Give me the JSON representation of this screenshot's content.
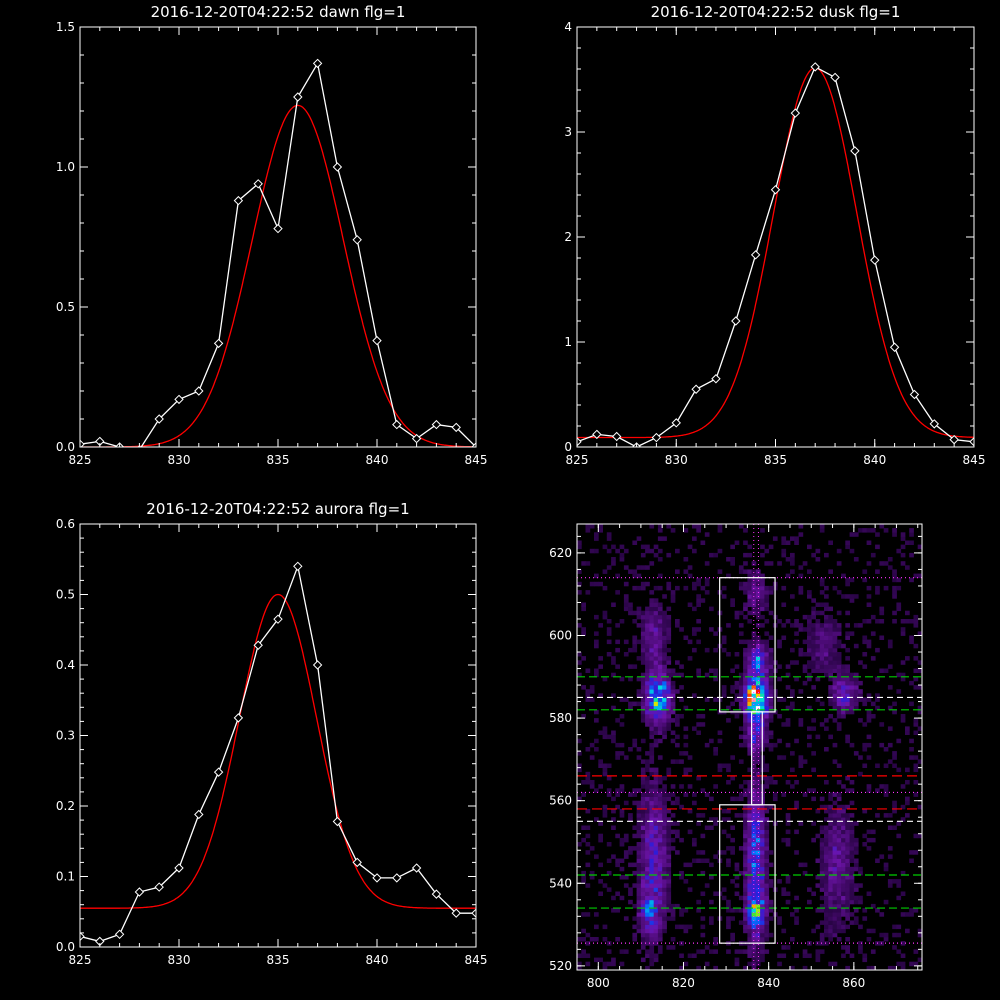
{
  "chart_data": [
    {
      "type": "line",
      "title": "2016-12-20T04:22:52 dawn flg=1",
      "xlim": [
        825,
        845
      ],
      "ylim": [
        0,
        1.5
      ],
      "xticks": [
        "825",
        "830",
        "835",
        "840",
        "845"
      ],
      "yticks": [
        "0.0",
        "0.5",
        "1.0",
        "1.5"
      ],
      "series": [
        {
          "style": "data",
          "color": "#ffffff",
          "x": [
            825,
            826,
            827,
            828,
            829,
            830,
            831,
            832,
            833,
            834,
            835,
            836,
            837,
            838,
            839,
            840,
            841,
            842,
            843,
            844,
            845
          ],
          "y": [
            0.01,
            0.02,
            0.0,
            -0.01,
            0.1,
            0.17,
            0.2,
            0.37,
            0.88,
            0.94,
            0.78,
            1.25,
            1.37,
            1.0,
            0.74,
            0.38,
            0.08,
            0.03,
            0.08,
            0.07,
            0.0
          ]
        },
        {
          "style": "fit",
          "color": "#ff0000",
          "amp": 1.22,
          "center": 836.0,
          "sigma": 2.3,
          "base": 0.0
        }
      ]
    },
    {
      "type": "line",
      "title": "2016-12-20T04:22:52 dusk flg=1",
      "xlim": [
        825,
        845
      ],
      "ylim": [
        0,
        4
      ],
      "xticks": [
        "825",
        "830",
        "835",
        "840",
        "845"
      ],
      "yticks": [
        "0",
        "1",
        "2",
        "3",
        "4"
      ],
      "series": [
        {
          "style": "data",
          "color": "#ffffff",
          "x": [
            825,
            826,
            827,
            828,
            829,
            830,
            831,
            832,
            833,
            834,
            835,
            836,
            837,
            838,
            839,
            840,
            841,
            842,
            843,
            844,
            845
          ],
          "y": [
            0.05,
            0.12,
            0.1,
            0.0,
            0.09,
            0.23,
            0.55,
            0.65,
            1.2,
            1.83,
            2.45,
            3.18,
            3.62,
            3.52,
            2.82,
            1.78,
            0.95,
            0.5,
            0.22,
            0.07,
            0.05
          ]
        },
        {
          "style": "fit",
          "color": "#ff0000",
          "amp": 3.52,
          "center": 837.0,
          "sigma": 2.1,
          "base": 0.09
        }
      ]
    },
    {
      "type": "line",
      "title": "2016-12-20T04:22:52 aurora flg=1",
      "xlim": [
        825,
        845
      ],
      "ylim": [
        0,
        0.6
      ],
      "xticks": [
        "825",
        "830",
        "835",
        "840",
        "845"
      ],
      "yticks": [
        "0.0",
        "0.1",
        "0.2",
        "0.3",
        "0.4",
        "0.5",
        "0.6"
      ],
      "series": [
        {
          "style": "data",
          "color": "#ffffff",
          "x": [
            825,
            826,
            827,
            828,
            829,
            830,
            831,
            832,
            833,
            834,
            835,
            836,
            837,
            838,
            839,
            840,
            841,
            842,
            843,
            844,
            845
          ],
          "y": [
            0.015,
            0.008,
            0.018,
            0.078,
            0.085,
            0.112,
            0.188,
            0.248,
            0.325,
            0.428,
            0.465,
            0.54,
            0.4,
            0.178,
            0.12,
            0.098,
            0.098,
            0.112,
            0.075,
            0.048,
            0.048
          ]
        },
        {
          "style": "fit",
          "color": "#ff0000",
          "amp": 0.445,
          "center": 835.0,
          "sigma": 1.95,
          "base": 0.055
        }
      ]
    },
    {
      "type": "heatmap",
      "title": "",
      "xlim": [
        795,
        876
      ],
      "ylim": [
        519,
        627
      ],
      "xticks": [
        "800",
        "820",
        "840",
        "860"
      ],
      "yticks": [
        "520",
        "540",
        "560",
        "580",
        "600",
        "620"
      ],
      "colors": {
        "box": "#ffffff",
        "dotted": "#ff33ff",
        "green_dash": "#00cc00",
        "red_dash": "#ff0000",
        "white_dash": "#ffffff"
      },
      "boxes": [
        {
          "x0": 828.5,
          "x1": 841.5,
          "y0": 525.5,
          "y1": 559
        },
        {
          "x0": 828.5,
          "x1": 841.5,
          "y0": 581.5,
          "y1": 614
        }
      ],
      "connector": {
        "x0": 836,
        "x1": 838.5,
        "y0": 559,
        "y1": 581.5
      },
      "dotted_h": [
        525.5,
        562,
        614
      ],
      "dotted_v": [
        836.5,
        837.6
      ],
      "green_dash": [
        534,
        542,
        582,
        590
      ],
      "red_dash": [
        558,
        566
      ],
      "white_dash": [
        555,
        585
      ],
      "blobs": [
        {
          "x": 837,
          "y": 585,
          "sx": 1.8,
          "sy": 3.0,
          "v": 1.0
        },
        {
          "x": 837.5,
          "y": 594,
          "sx": 1.6,
          "sy": 2.5,
          "v": 0.45
        },
        {
          "x": 837,
          "y": 576,
          "sx": 1.5,
          "sy": 3.0,
          "v": 0.3
        },
        {
          "x": 814,
          "y": 585,
          "sx": 2.0,
          "sy": 4.0,
          "v": 0.6
        },
        {
          "x": 813,
          "y": 600,
          "sx": 2.0,
          "sy": 5.0,
          "v": 0.2
        },
        {
          "x": 837,
          "y": 545,
          "sx": 1.5,
          "sy": 12.0,
          "v": 0.42
        },
        {
          "x": 837,
          "y": 533,
          "sx": 1.5,
          "sy": 3.0,
          "v": 0.35
        },
        {
          "x": 813,
          "y": 545,
          "sx": 2.2,
          "sy": 12.0,
          "v": 0.28
        },
        {
          "x": 812,
          "y": 533,
          "sx": 1.5,
          "sy": 3.0,
          "v": 0.25
        },
        {
          "x": 858,
          "y": 586,
          "sx": 2.0,
          "sy": 3.0,
          "v": 0.3
        },
        {
          "x": 856,
          "y": 545,
          "sx": 2.5,
          "sy": 10.0,
          "v": 0.18
        },
        {
          "x": 853,
          "y": 598,
          "sx": 3.0,
          "sy": 5.0,
          "v": 0.12
        },
        {
          "x": 837,
          "y": 610,
          "sx": 2.0,
          "sy": 4.0,
          "v": 0.15
        }
      ]
    }
  ]
}
